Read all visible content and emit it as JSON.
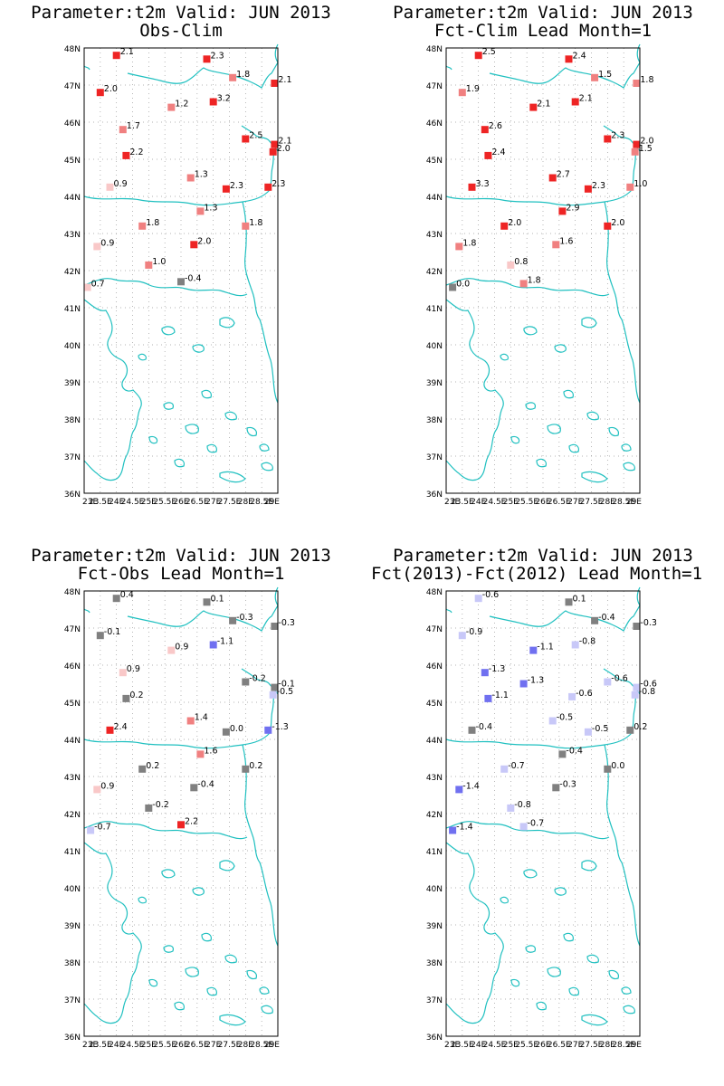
{
  "colors": {
    "coast": "#20c0c0",
    "frame": "#000000",
    "neutral": "#808080",
    "warm_light": "#f9c8c8",
    "warm_mid": "#f08080",
    "warm_strong": "#ee2424",
    "cool_light": "#c8c8f8",
    "cool_strong": "#7070f0"
  },
  "axes": {
    "lon_range": [
      23,
      29
    ],
    "lat_range": [
      36,
      48
    ],
    "lon_ticks": [
      23,
      23.5,
      24,
      24.5,
      25,
      25.5,
      26,
      26.5,
      27,
      27.5,
      28,
      28.5,
      29
    ],
    "lon_tick_labels": [
      "23E",
      "23.5E",
      "24E",
      "24.5E",
      "25E",
      "25.5E",
      "26E",
      "26.5E",
      "27E",
      "27.5E",
      "28E",
      "28.5E",
      "29E"
    ],
    "lat_ticks": [
      36,
      37,
      38,
      39,
      40,
      41,
      42,
      43,
      44,
      45,
      46,
      47,
      48
    ],
    "lat_tick_labels": [
      "36N",
      "37N",
      "38N",
      "39N",
      "40N",
      "41N",
      "42N",
      "43N",
      "44N",
      "45N",
      "46N",
      "47N",
      "48N"
    ],
    "grid": true
  },
  "chart_data": [
    {
      "type": "scatter",
      "title": "Parameter:t2m Valid: JUN 2013",
      "subtitle": "Obs-Clim",
      "points": [
        {
          "lon": 24.0,
          "lat": 47.8,
          "value": "2.1"
        },
        {
          "lon": 26.8,
          "lat": 47.7,
          "value": "2.3"
        },
        {
          "lon": 27.6,
          "lat": 47.2,
          "value": "1.8"
        },
        {
          "lon": 28.9,
          "lat": 47.05,
          "value": "2.1"
        },
        {
          "lon": 23.5,
          "lat": 46.8,
          "value": "2.0"
        },
        {
          "lon": 25.7,
          "lat": 46.4,
          "value": "1.2"
        },
        {
          "lon": 27.0,
          "lat": 46.55,
          "value": "3.2"
        },
        {
          "lon": 24.2,
          "lat": 45.8,
          "value": "1.7"
        },
        {
          "lon": 28.0,
          "lat": 45.55,
          "value": "2.5"
        },
        {
          "lon": 28.9,
          "lat": 45.4,
          "value": "2.1"
        },
        {
          "lon": 28.85,
          "lat": 45.2,
          "value": "2.0"
        },
        {
          "lon": 24.3,
          "lat": 45.1,
          "value": "2.2"
        },
        {
          "lon": 26.3,
          "lat": 44.5,
          "value": "1.3"
        },
        {
          "lon": 23.8,
          "lat": 44.25,
          "value": "0.9"
        },
        {
          "lon": 27.4,
          "lat": 44.2,
          "value": "2.3"
        },
        {
          "lon": 28.7,
          "lat": 44.25,
          "value": "2.3"
        },
        {
          "lon": 26.6,
          "lat": 43.6,
          "value": "1.3"
        },
        {
          "lon": 24.8,
          "lat": 43.2,
          "value": "1.8"
        },
        {
          "lon": 28.0,
          "lat": 43.2,
          "value": "1.8"
        },
        {
          "lon": 23.4,
          "lat": 42.65,
          "value": "0.9"
        },
        {
          "lon": 26.4,
          "lat": 42.7,
          "value": "2.0"
        },
        {
          "lon": 25.0,
          "lat": 42.15,
          "value": "1.0"
        },
        {
          "lon": 26.0,
          "lat": 41.7,
          "value": "-0.4"
        },
        {
          "lon": 23.1,
          "lat": 41.55,
          "value": "0.7"
        }
      ]
    },
    {
      "type": "scatter",
      "title": "Parameter:t2m Valid: JUN 2013",
      "subtitle": "Fct-Clim Lead Month=1",
      "points": [
        {
          "lon": 24.0,
          "lat": 47.8,
          "value": "2.5"
        },
        {
          "lon": 26.8,
          "lat": 47.7,
          "value": "2.4"
        },
        {
          "lon": 27.6,
          "lat": 47.2,
          "value": "1.5"
        },
        {
          "lon": 28.9,
          "lat": 47.05,
          "value": "1.8"
        },
        {
          "lon": 23.5,
          "lat": 46.8,
          "value": "1.9"
        },
        {
          "lon": 25.7,
          "lat": 46.4,
          "value": "2.1"
        },
        {
          "lon": 27.0,
          "lat": 46.55,
          "value": "2.1"
        },
        {
          "lon": 24.2,
          "lat": 45.8,
          "value": "2.6"
        },
        {
          "lon": 28.0,
          "lat": 45.55,
          "value": "2.3"
        },
        {
          "lon": 28.9,
          "lat": 45.4,
          "value": "2.0"
        },
        {
          "lon": 28.85,
          "lat": 45.2,
          "value": "1.5"
        },
        {
          "lon": 24.3,
          "lat": 45.1,
          "value": "2.4"
        },
        {
          "lon": 26.3,
          "lat": 44.5,
          "value": "2.7"
        },
        {
          "lon": 23.8,
          "lat": 44.25,
          "value": "3.3"
        },
        {
          "lon": 27.4,
          "lat": 44.2,
          "value": "2.3"
        },
        {
          "lon": 28.7,
          "lat": 44.25,
          "value": "1.0"
        },
        {
          "lon": 26.6,
          "lat": 43.6,
          "value": "2.9"
        },
        {
          "lon": 24.8,
          "lat": 43.2,
          "value": "2.0"
        },
        {
          "lon": 28.0,
          "lat": 43.2,
          "value": "2.0"
        },
        {
          "lon": 23.4,
          "lat": 42.65,
          "value": "1.8"
        },
        {
          "lon": 26.4,
          "lat": 42.7,
          "value": "1.6"
        },
        {
          "lon": 25.0,
          "lat": 42.15,
          "value": "0.8"
        },
        {
          "lon": 25.4,
          "lat": 41.65,
          "value": "1.8"
        },
        {
          "lon": 23.2,
          "lat": 41.55,
          "value": "0.0"
        }
      ]
    },
    {
      "type": "scatter",
      "title": "Parameter:t2m Valid: JUN 2013",
      "subtitle": "Fct-Obs Lead Month=1",
      "points": [
        {
          "lon": 24.0,
          "lat": 47.8,
          "value": "0.4"
        },
        {
          "lon": 26.8,
          "lat": 47.7,
          "value": "0.1"
        },
        {
          "lon": 27.6,
          "lat": 47.2,
          "value": "-0.3"
        },
        {
          "lon": 28.9,
          "lat": 47.05,
          "value": "-0.3"
        },
        {
          "lon": 23.5,
          "lat": 46.8,
          "value": "-0.1"
        },
        {
          "lon": 25.7,
          "lat": 46.4,
          "value": "0.9"
        },
        {
          "lon": 27.0,
          "lat": 46.55,
          "value": "-1.1"
        },
        {
          "lon": 24.2,
          "lat": 45.8,
          "value": "0.9"
        },
        {
          "lon": 28.0,
          "lat": 45.55,
          "value": "-0.2"
        },
        {
          "lon": 28.9,
          "lat": 45.4,
          "value": "-0.1"
        },
        {
          "lon": 28.85,
          "lat": 45.2,
          "value": "-0.5"
        },
        {
          "lon": 24.3,
          "lat": 45.1,
          "value": "0.2"
        },
        {
          "lon": 26.3,
          "lat": 44.5,
          "value": "1.4"
        },
        {
          "lon": 23.8,
          "lat": 44.25,
          "value": "2.4"
        },
        {
          "lon": 27.4,
          "lat": 44.2,
          "value": "0.0"
        },
        {
          "lon": 28.7,
          "lat": 44.25,
          "value": "-1.3"
        },
        {
          "lon": 26.6,
          "lat": 43.6,
          "value": "1.6"
        },
        {
          "lon": 24.8,
          "lat": 43.2,
          "value": "0.2"
        },
        {
          "lon": 28.0,
          "lat": 43.2,
          "value": "0.2"
        },
        {
          "lon": 23.4,
          "lat": 42.65,
          "value": "0.9"
        },
        {
          "lon": 26.4,
          "lat": 42.7,
          "value": "-0.4"
        },
        {
          "lon": 25.0,
          "lat": 42.15,
          "value": "-0.2"
        },
        {
          "lon": 26.0,
          "lat": 41.7,
          "value": "2.2"
        },
        {
          "lon": 23.2,
          "lat": 41.55,
          "value": "-0.7"
        }
      ]
    },
    {
      "type": "scatter",
      "title": "Parameter:t2m Valid: JUN 2013",
      "subtitle": "Fct(2013)-Fct(2012) Lead Month=1",
      "points": [
        {
          "lon": 24.0,
          "lat": 47.8,
          "value": "-0.6"
        },
        {
          "lon": 26.8,
          "lat": 47.7,
          "value": "0.1"
        },
        {
          "lon": 27.6,
          "lat": 47.2,
          "value": "-0.4"
        },
        {
          "lon": 28.9,
          "lat": 47.05,
          "value": "-0.3"
        },
        {
          "lon": 23.5,
          "lat": 46.8,
          "value": "-0.9"
        },
        {
          "lon": 25.7,
          "lat": 46.4,
          "value": "-1.1"
        },
        {
          "lon": 27.0,
          "lat": 46.55,
          "value": "-0.8"
        },
        {
          "lon": 24.2,
          "lat": 45.8,
          "value": "-1.3"
        },
        {
          "lon": 25.4,
          "lat": 45.5,
          "value": "-1.3"
        },
        {
          "lon": 28.0,
          "lat": 45.55,
          "value": "-0.6"
        },
        {
          "lon": 28.9,
          "lat": 45.4,
          "value": "-0.6"
        },
        {
          "lon": 28.85,
          "lat": 45.2,
          "value": "-0.8"
        },
        {
          "lon": 24.3,
          "lat": 45.1,
          "value": "-1.1"
        },
        {
          "lon": 26.9,
          "lat": 45.15,
          "value": "-0.6"
        },
        {
          "lon": 26.3,
          "lat": 44.5,
          "value": "-0.5"
        },
        {
          "lon": 23.8,
          "lat": 44.25,
          "value": "-0.4"
        },
        {
          "lon": 27.4,
          "lat": 44.2,
          "value": "-0.5"
        },
        {
          "lon": 28.7,
          "lat": 44.25,
          "value": "0.2"
        },
        {
          "lon": 26.6,
          "lat": 43.6,
          "value": "-0.4"
        },
        {
          "lon": 24.8,
          "lat": 43.2,
          "value": "-0.7"
        },
        {
          "lon": 28.0,
          "lat": 43.2,
          "value": "0.0"
        },
        {
          "lon": 23.4,
          "lat": 42.65,
          "value": "-1.4"
        },
        {
          "lon": 26.4,
          "lat": 42.7,
          "value": "-0.3"
        },
        {
          "lon": 25.0,
          "lat": 42.15,
          "value": "-0.8"
        },
        {
          "lon": 25.4,
          "lat": 41.65,
          "value": "-0.7"
        },
        {
          "lon": 23.2,
          "lat": 41.55,
          "value": "-1.4"
        }
      ]
    }
  ]
}
